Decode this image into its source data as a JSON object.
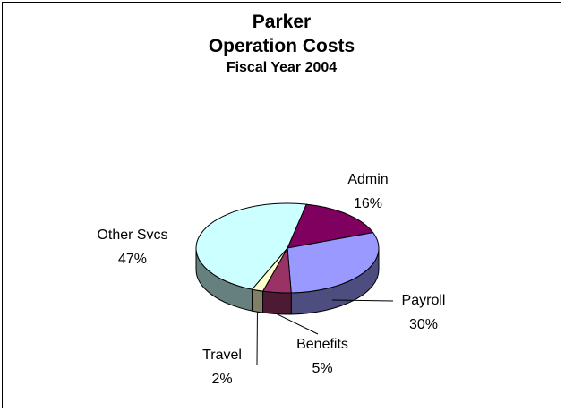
{
  "chart_data": {
    "type": "pie",
    "title_lines": [
      "Parker",
      "Operation Costs",
      "Fiscal Year 2004"
    ],
    "slices": [
      {
        "label": "Admin",
        "percent_text": "16%",
        "value": 16,
        "color": "#800060"
      },
      {
        "label": "Payroll",
        "percent_text": "30%",
        "value": 30,
        "color": "#9999ff"
      },
      {
        "label": "Benefits",
        "percent_text": "5%",
        "value": 5,
        "color": "#993366"
      },
      {
        "label": "Travel",
        "percent_text": "2%",
        "value": 2,
        "color": "#ffffcc"
      },
      {
        "label": "Other Svcs",
        "percent_text": "47%",
        "value": 47,
        "color": "#ccffff"
      }
    ],
    "style": "3d-tilted",
    "legend": "none"
  }
}
